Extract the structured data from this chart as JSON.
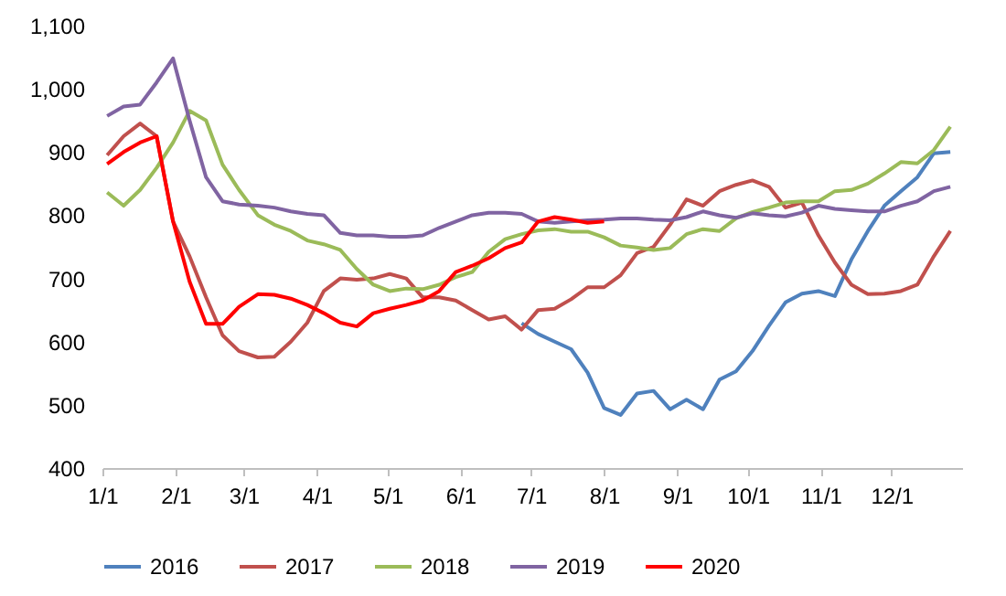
{
  "chart_data": {
    "type": "line",
    "x": [
      "--01-03",
      "--01-10",
      "--01-17",
      "--01-24",
      "--01-31",
      "--02-07",
      "--02-14",
      "--02-21",
      "--02-28",
      "--03-07",
      "--03-14",
      "--03-21",
      "--03-28",
      "--04-04",
      "--04-11",
      "--04-18",
      "--04-25",
      "--05-02",
      "--05-09",
      "--05-16",
      "--05-23",
      "--05-30",
      "--06-06",
      "--06-13",
      "--06-20",
      "--06-27",
      "--07-04",
      "--07-11",
      "--07-18",
      "--07-25",
      "--08-01",
      "--08-08",
      "--08-15",
      "--08-22",
      "--08-29",
      "--09-05",
      "--09-12",
      "--09-19",
      "--09-26",
      "--10-03",
      "--10-10",
      "--10-17",
      "--10-24",
      "--10-31",
      "--11-07",
      "--11-14",
      "--11-21",
      "--11-28",
      "--12-05",
      "--12-12",
      "--12-19",
      "--12-26"
    ],
    "series": [
      {
        "name": "2016",
        "color": "#4f81bd",
        "values": [
          null,
          null,
          null,
          null,
          null,
          null,
          null,
          null,
          null,
          null,
          null,
          null,
          null,
          null,
          null,
          null,
          null,
          null,
          null,
          null,
          null,
          null,
          null,
          null,
          null,
          629,
          612,
          600,
          588,
          551,
          495,
          484,
          518,
          522,
          493,
          508,
          493,
          540,
          553,
          585,
          625,
          662,
          676,
          680,
          672,
          730,
          775,
          815,
          838,
          860,
          898,
          900
        ]
      },
      {
        "name": "2017",
        "color": "#c0504d",
        "values": [
          895,
          925,
          945,
          925,
          790,
          735,
          670,
          610,
          585,
          575,
          576,
          600,
          630,
          680,
          700,
          698,
          700,
          707,
          700,
          670,
          670,
          665,
          650,
          635,
          640,
          619,
          650,
          652,
          667,
          686,
          686,
          705,
          740,
          750,
          785,
          825,
          815,
          838,
          848,
          855,
          845,
          812,
          820,
          768,
          725,
          690,
          675,
          676,
          680,
          690,
          735,
          775
        ]
      },
      {
        "name": "2018",
        "color": "#9bbb59",
        "values": [
          836,
          815,
          840,
          875,
          915,
          965,
          950,
          880,
          840,
          800,
          785,
          775,
          760,
          754,
          745,
          715,
          690,
          680,
          684,
          683,
          690,
          702,
          710,
          742,
          762,
          770,
          776,
          778,
          774,
          774,
          765,
          752,
          749,
          745,
          748,
          770,
          778,
          775,
          795,
          805,
          812,
          820,
          822,
          822,
          838,
          840,
          850,
          866,
          884,
          882,
          903,
          940
        ]
      },
      {
        "name": "2019",
        "color": "#8064a2",
        "values": [
          957,
          972,
          975,
          1010,
          1048,
          950,
          860,
          822,
          817,
          815,
          812,
          806,
          802,
          800,
          772,
          768,
          768,
          766,
          766,
          768,
          780,
          790,
          800,
          804,
          804,
          802,
          790,
          788,
          790,
          792,
          793,
          795,
          795,
          793,
          792,
          797,
          806,
          800,
          796,
          803,
          800,
          798,
          804,
          815,
          810,
          808,
          806,
          806,
          815,
          822,
          838,
          845
        ]
      },
      {
        "name": "2020",
        "color": "#ff0000",
        "values": [
          881,
          900,
          915,
          925,
          790,
          695,
          628,
          628,
          655,
          675,
          674,
          668,
          658,
          645,
          630,
          624,
          645,
          652,
          658,
          665,
          680,
          710,
          720,
          732,
          748,
          757,
          790,
          797,
          793,
          788,
          790,
          null,
          null,
          null,
          null,
          null,
          null,
          null,
          null,
          null,
          null,
          null,
          null,
          null,
          null,
          null,
          null,
          null,
          null,
          null,
          null,
          null
        ]
      }
    ],
    "xlim": [
      "--01-01",
      "--12-31"
    ],
    "xticks": [
      {
        "value": "--01-01",
        "label": "1/1"
      },
      {
        "value": "--02-01",
        "label": "2/1"
      },
      {
        "value": "--03-01",
        "label": "3/1"
      },
      {
        "value": "--04-01",
        "label": "4/1"
      },
      {
        "value": "--05-01",
        "label": "5/1"
      },
      {
        "value": "--06-01",
        "label": "6/1"
      },
      {
        "value": "--07-01",
        "label": "7/1"
      },
      {
        "value": "--08-01",
        "label": "8/1"
      },
      {
        "value": "--09-01",
        "label": "9/1"
      },
      {
        "value": "--10-01",
        "label": "10/1"
      },
      {
        "value": "--11-01",
        "label": "11/1"
      },
      {
        "value": "--12-01",
        "label": "12/1"
      }
    ],
    "ylim": [
      400,
      1100
    ],
    "yticks": [
      {
        "value": 400,
        "label": "400"
      },
      {
        "value": 500,
        "label": "500"
      },
      {
        "value": 600,
        "label": "600"
      },
      {
        "value": 700,
        "label": "700"
      },
      {
        "value": 800,
        "label": "800"
      },
      {
        "value": 900,
        "label": "900"
      },
      {
        "value": 1000,
        "label": "1,000"
      },
      {
        "value": 1100,
        "label": "1,100"
      }
    ],
    "grid": false,
    "legend": "bottom"
  }
}
